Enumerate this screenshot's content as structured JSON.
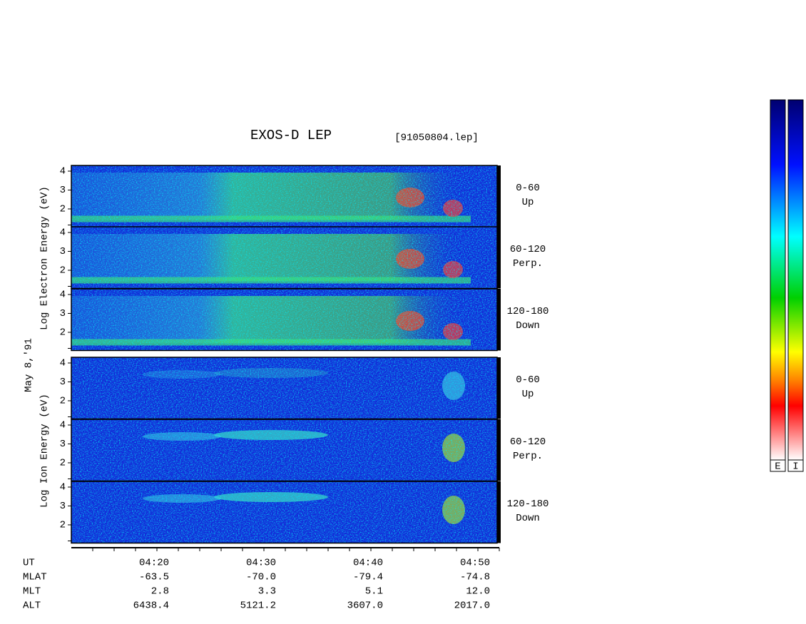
{
  "title": "EXOS-D LEP",
  "file": "[91050804.lep]",
  "date": "May  8,'91",
  "electron_axis_label": "Log  Electron  Energy (eV)",
  "ion_axis_label": "Log  Ion  Energy (eV)",
  "yticks": [
    2,
    3,
    4
  ],
  "panels": [
    {
      "species": "electron",
      "range": "0-60",
      "direction": "Up"
    },
    {
      "species": "electron",
      "range": "60-120",
      "direction": "Perp."
    },
    {
      "species": "electron",
      "range": "120-180",
      "direction": "Down"
    },
    {
      "species": "ion",
      "range": "0-60",
      "direction": "Up"
    },
    {
      "species": "ion",
      "range": "60-120",
      "direction": "Perp."
    },
    {
      "species": "ion",
      "range": "120-180",
      "direction": "Down"
    }
  ],
  "orbit_table": {
    "rows": [
      {
        "name": "UT",
        "values": [
          "04:20",
          "04:30",
          "04:40",
          "04:50"
        ]
      },
      {
        "name": "MLAT",
        "values": [
          "-63.5",
          "-70.0",
          "-79.4",
          "-74.8"
        ]
      },
      {
        "name": "MLT",
        "values": [
          "2.8",
          "3.3",
          "5.1",
          "12.0"
        ]
      },
      {
        "name": "ALT",
        "values": [
          "6438.4",
          "5121.2",
          "3607.0",
          "2017.0"
        ]
      }
    ]
  },
  "colorbars": [
    "E",
    "I"
  ]
}
